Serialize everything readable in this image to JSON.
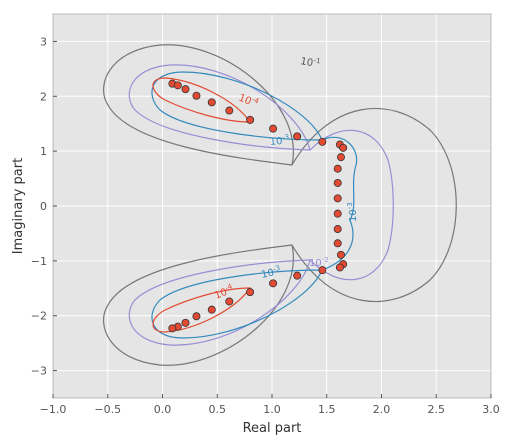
{
  "chart_data": {
    "type": "scatter",
    "xlabel": "Real part",
    "ylabel": "Imaginary part",
    "xlim": [
      -1.0,
      3.0
    ],
    "ylim": [
      -3.5,
      3.5
    ],
    "xticks": [
      -1.0,
      -0.5,
      0.0,
      0.5,
      1.0,
      1.5,
      2.0,
      2.5,
      3.0
    ],
    "yticks": [
      -3,
      -2,
      -1,
      0,
      1,
      2,
      3
    ],
    "xtick_labels": [
      "−1.0",
      "−0.5",
      "0.0",
      "0.5",
      "1.0",
      "1.5",
      "2.0",
      "2.5",
      "3.0"
    ],
    "ytick_labels": [
      "−3",
      "−2",
      "−1",
      "0",
      "1",
      "2",
      "3"
    ],
    "grid": true,
    "background": "#e5e5e5",
    "point_color": "#e24a33",
    "points": [
      [
        0.09,
        2.23
      ],
      [
        0.14,
        2.2
      ],
      [
        0.21,
        2.13
      ],
      [
        0.31,
        2.01
      ],
      [
        0.45,
        1.89
      ],
      [
        0.61,
        1.74
      ],
      [
        0.8,
        1.57
      ],
      [
        1.01,
        1.41
      ],
      [
        1.23,
        1.27
      ],
      [
        1.46,
        1.17
      ],
      [
        1.62,
        1.12
      ],
      [
        1.65,
        1.06
      ],
      [
        1.63,
        0.89
      ],
      [
        1.6,
        0.68
      ],
      [
        1.6,
        0.42
      ],
      [
        1.6,
        0.14
      ],
      [
        1.6,
        -0.14
      ],
      [
        1.6,
        -0.42
      ],
      [
        1.6,
        -0.68
      ],
      [
        1.63,
        -0.89
      ],
      [
        1.65,
        -1.06
      ],
      [
        1.62,
        -1.12
      ],
      [
        1.46,
        -1.17
      ],
      [
        1.23,
        -1.27
      ],
      [
        1.01,
        -1.41
      ],
      [
        0.8,
        -1.57
      ],
      [
        0.61,
        -1.74
      ],
      [
        0.45,
        -1.89
      ],
      [
        0.31,
        -2.01
      ],
      [
        0.21,
        -2.13
      ],
      [
        0.14,
        -2.2
      ],
      [
        0.09,
        -2.23
      ]
    ],
    "contours": [
      {
        "level_base": "10",
        "level_exp": "-1",
        "color": "#777777"
      },
      {
        "level_base": "10",
        "level_exp": "-2",
        "color": "#988ed5"
      },
      {
        "level_base": "10",
        "level_exp": "-3",
        "color": "#348abd"
      },
      {
        "level_base": "10",
        "level_exp": "-4",
        "color": "#e24a33"
      }
    ]
  }
}
